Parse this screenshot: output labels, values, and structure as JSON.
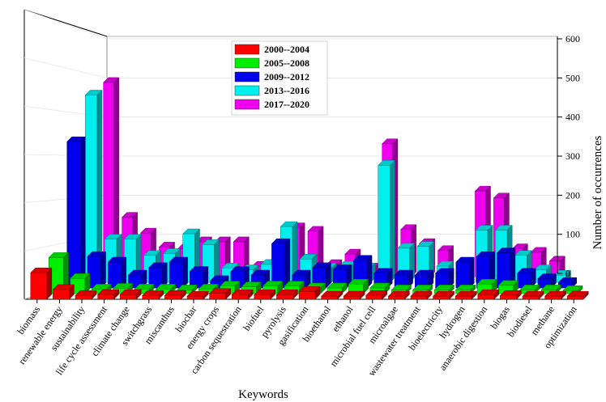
{
  "chart_data": {
    "type": "bar",
    "title": "",
    "xlabel": "Keywords",
    "ylabel": "Number of occurrences",
    "ylim": [
      0,
      600
    ],
    "yticks": [
      0,
      100,
      200,
      300,
      400,
      500,
      600
    ],
    "legend_position": "top-center",
    "categories": [
      "biomass",
      "renewable energy",
      "sustainability",
      "life cycle assessment",
      "climate change",
      "switchgrass",
      "miscanthus",
      "biochar",
      "energy crops",
      "carbon sequestration",
      "biofuel",
      "pyrolysis",
      "gasification",
      "bioethanol",
      "ethanol",
      "microbial fuel cell",
      "microalgae",
      "wastewater treatment",
      "bioelectricity",
      "hydrogen",
      "anaerobic digestion",
      "biogas",
      "biodiesel",
      "methane",
      "optimization"
    ],
    "series": [
      {
        "name": "2000--2004",
        "color": "#ff0000",
        "values": [
          68,
          25,
          10,
          12,
          12,
          10,
          10,
          8,
          15,
          12,
          12,
          12,
          20,
          8,
          8,
          10,
          8,
          8,
          8,
          8,
          12,
          10,
          8,
          8,
          8
        ]
      },
      {
        "name": "2005--2008",
        "color": "#00ee00",
        "values": [
          95,
          40,
          12,
          14,
          12,
          12,
          10,
          12,
          20,
          18,
          20,
          20,
          15,
          15,
          25,
          15,
          10,
          10,
          10,
          10,
          25,
          22,
          10,
          10,
          8
        ]
      },
      {
        "name": "2009--2012",
        "color": "#0000ee",
        "values": [
          395,
          85,
          70,
          35,
          55,
          70,
          45,
          20,
          45,
          35,
          120,
          35,
          55,
          50,
          75,
          40,
          35,
          35,
          40,
          70,
          85,
          95,
          40,
          25,
          15
        ]
      },
      {
        "name": "2013--2016",
        "color": "#00eeee",
        "values": [
          520,
          120,
          120,
          75,
          80,
          135,
          105,
          40,
          35,
          50,
          155,
          65,
          40,
          45,
          40,
          325,
          95,
          100,
          45,
          35,
          145,
          145,
          75,
          35,
          20
        ]
      },
      {
        "name": "2017--2020",
        "color": "#ee00ee",
        "values": [
          555,
          170,
          125,
          85,
          80,
          100,
          100,
          100,
          30,
          30,
          140,
          130,
          35,
          65,
          25,
          380,
          135,
          95,
          75,
          20,
          245,
          225,
          80,
          70,
          45
        ]
      }
    ]
  }
}
